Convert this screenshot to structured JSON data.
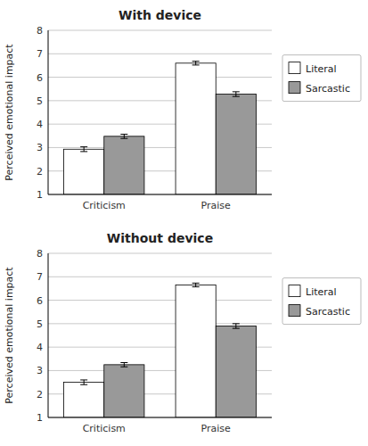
{
  "chart_data": [
    {
      "type": "bar",
      "title": "With device",
      "y_label": "Perceived emotional impact",
      "categories": [
        "Criticism",
        "Praise"
      ],
      "series": [
        {
          "name": "Literal",
          "color": "#ffffff",
          "values": [
            2.93,
            6.6
          ],
          "errors": [
            0.1,
            0.08
          ]
        },
        {
          "name": "Sarcastic",
          "color": "#999999",
          "values": [
            3.48,
            5.28
          ],
          "errors": [
            0.09,
            0.1
          ]
        }
      ],
      "ylim": [
        1,
        8
      ],
      "yticks": [
        1,
        2,
        3,
        4,
        5,
        6,
        7,
        8
      ],
      "grid": true,
      "legend": "right"
    },
    {
      "type": "bar",
      "title": "Without device",
      "y_label": "Perceived emotional impact",
      "categories": [
        "Criticism",
        "Praise"
      ],
      "series": [
        {
          "name": "Literal",
          "color": "#ffffff",
          "values": [
            2.5,
            6.65
          ],
          "errors": [
            0.1,
            0.08
          ]
        },
        {
          "name": "Sarcastic",
          "color": "#999999",
          "values": [
            3.25,
            4.9
          ],
          "errors": [
            0.09,
            0.1
          ]
        }
      ],
      "ylim": [
        1,
        8
      ],
      "yticks": [
        1,
        2,
        3,
        4,
        5,
        6,
        7,
        8
      ],
      "grid": true,
      "legend": "right"
    }
  ]
}
